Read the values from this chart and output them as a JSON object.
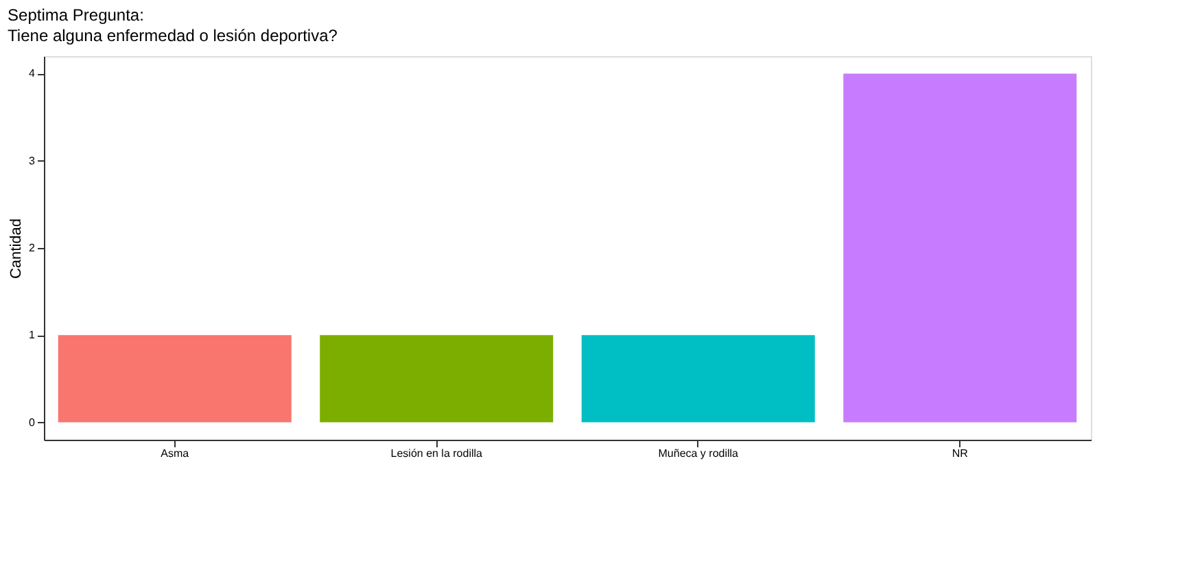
{
  "chart_data": {
    "type": "bar",
    "title": "Septima Pregunta:",
    "subtitle": "Tiene alguna enfermedad o lesión deportiva?",
    "ylabel": "Cantidad",
    "categories": [
      "Asma",
      "Lesión en la rodilla",
      "Muñeca y rodilla",
      "NR"
    ],
    "values": [
      1,
      1,
      1,
      4
    ],
    "colors": [
      "#f8766d",
      "#7cae00",
      "#00bfc4",
      "#c77cff"
    ],
    "ylim": [
      -0.2,
      4.2
    ],
    "yticks": [
      0,
      1,
      2,
      3,
      4
    ]
  }
}
